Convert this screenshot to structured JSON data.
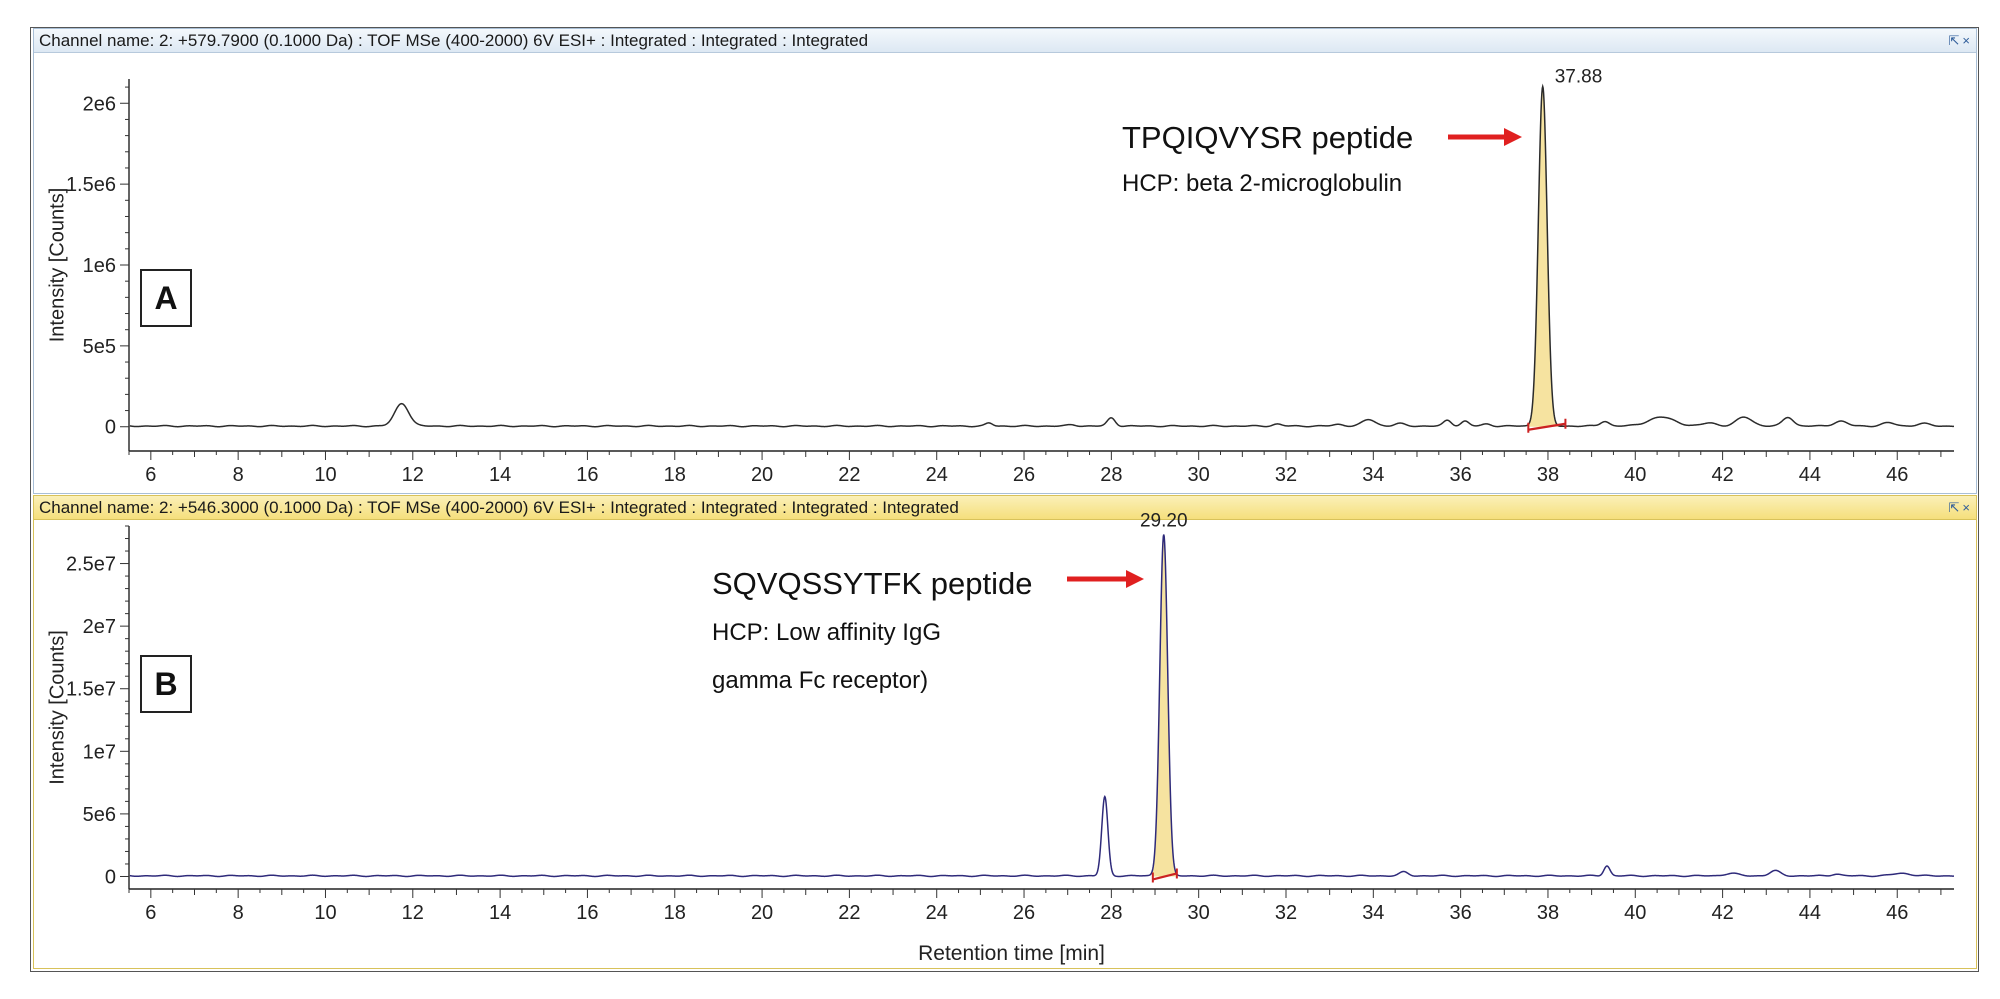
{
  "panels": [
    {
      "header": "Channel name: 2: +579.7900 (0.1000 Da) : TOF MSe (400-2000) 6V ESI+ : Integrated : Integrated : Integrated",
      "label": "A",
      "ylabel": "Intensity [Counts]",
      "peak_label": "37.88",
      "annotation_title": "TPQIQVYSR peptide",
      "annotation_lines": [
        "HCP: beta 2-microglobulin"
      ]
    },
    {
      "header": "Channel name: 2: +546.3000 (0.1000 Da) : TOF MSe (400-2000) 6V ESI+ : Integrated : Integrated : Integrated : Integrated",
      "label": "B",
      "ylabel": "Intensity [Counts]",
      "peak_label": "29.20",
      "annotation_title": "SQVQSSYTFK peptide",
      "annotation_lines": [
        "HCP: Low affinity IgG",
        "gamma Fc receptor)"
      ]
    }
  ],
  "header_controls": [
    "⇱",
    "×"
  ],
  "colors": {
    "trace_a": "#2b2b2b",
    "trace_b": "#2e2a7a",
    "peak_fill": "#f6e3a0",
    "arrow": "#e02020",
    "baseline_marker": "#cc2222"
  },
  "chart_data": [
    {
      "type": "line",
      "title": "",
      "xlabel": "",
      "ylabel": "Intensity [Counts]",
      "xlim": [
        5.5,
        47.3
      ],
      "ylim": [
        -150000,
        2150000
      ],
      "xticks": [
        6,
        8,
        10,
        12,
        14,
        16,
        18,
        20,
        22,
        24,
        26,
        28,
        30,
        32,
        34,
        36,
        38,
        40,
        42,
        44,
        46
      ],
      "yticks": [
        0,
        500000,
        1000000,
        1500000,
        2000000
      ],
      "ytick_labels": [
        "0",
        "5e5",
        "1e6",
        "1.5e6",
        "2e6"
      ],
      "peaks": [
        {
          "rt": 11.75,
          "height": 140000,
          "width": 0.16
        },
        {
          "rt": 25.2,
          "height": 18000,
          "width": 0.08
        },
        {
          "rt": 27.1,
          "height": 8000,
          "width": 0.1
        },
        {
          "rt": 28.0,
          "height": 50000,
          "width": 0.09
        },
        {
          "rt": 31.8,
          "height": 12000,
          "width": 0.1
        },
        {
          "rt": 33.2,
          "height": 10000,
          "width": 0.12
        },
        {
          "rt": 33.9,
          "height": 40000,
          "width": 0.15
        },
        {
          "rt": 34.6,
          "height": 15000,
          "width": 0.12
        },
        {
          "rt": 35.7,
          "height": 35000,
          "width": 0.09
        },
        {
          "rt": 36.1,
          "height": 30000,
          "width": 0.09
        },
        {
          "rt": 36.6,
          "height": 12000,
          "width": 0.1
        },
        {
          "rt": 37.88,
          "height": 2100000,
          "width": 0.1
        },
        {
          "rt": 39.3,
          "height": 30000,
          "width": 0.1
        },
        {
          "rt": 40.6,
          "height": 55000,
          "width": 0.3
        },
        {
          "rt": 41.7,
          "height": 20000,
          "width": 0.15
        },
        {
          "rt": 42.5,
          "height": 55000,
          "width": 0.18
        },
        {
          "rt": 43.5,
          "height": 55000,
          "width": 0.12
        },
        {
          "rt": 44.7,
          "height": 30000,
          "width": 0.15
        },
        {
          "rt": 45.8,
          "height": 20000,
          "width": 0.15
        },
        {
          "rt": 46.6,
          "height": 15000,
          "width": 0.15
        }
      ],
      "integrated_peak": {
        "rt": 37.88,
        "start": 37.55,
        "end": 38.4
      }
    },
    {
      "type": "line",
      "title": "",
      "xlabel": "Retention time [min]",
      "ylabel": "Intensity [Counts]",
      "xlim": [
        5.5,
        47.3
      ],
      "ylim": [
        -1000000,
        28000000
      ],
      "xticks": [
        6,
        8,
        10,
        12,
        14,
        16,
        18,
        20,
        22,
        24,
        26,
        28,
        30,
        32,
        34,
        36,
        38,
        40,
        42,
        44,
        46
      ],
      "yticks": [
        0,
        5000000,
        10000000,
        15000000,
        20000000,
        25000000
      ],
      "ytick_labels": [
        "0",
        "5e6",
        "1e7",
        "1.5e7",
        "2e7",
        "2.5e7"
      ],
      "peaks": [
        {
          "rt": 27.85,
          "height": 6300000,
          "width": 0.07
        },
        {
          "rt": 29.2,
          "height": 27300000,
          "width": 0.09
        },
        {
          "rt": 34.7,
          "height": 300000,
          "width": 0.1
        },
        {
          "rt": 39.35,
          "height": 800000,
          "width": 0.07
        },
        {
          "rt": 42.2,
          "height": 200000,
          "width": 0.15
        },
        {
          "rt": 43.2,
          "height": 400000,
          "width": 0.12
        },
        {
          "rt": 44.6,
          "height": 150000,
          "width": 0.1
        },
        {
          "rt": 46.1,
          "height": 200000,
          "width": 0.2
        }
      ],
      "integrated_peak": {
        "rt": 29.2,
        "start": 28.95,
        "end": 29.5
      }
    }
  ]
}
